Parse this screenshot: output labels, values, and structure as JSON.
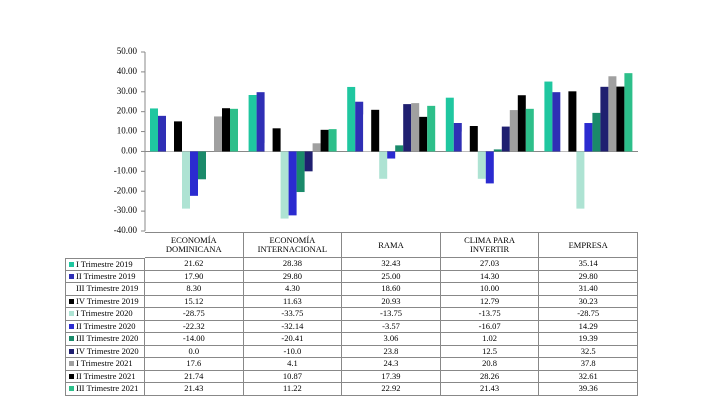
{
  "chart_data": {
    "type": "bar",
    "categories": [
      "ECONOMÍA DOMINICANA",
      "ECONOMÍA INTERNACIONAL",
      "RAMA",
      "CLIMA PARA INVERTIR",
      "EMPRESA"
    ],
    "ylim": [
      -40,
      50
    ],
    "yticks": [
      {
        "value": -40,
        "label": "-40.00"
      },
      {
        "value": -30,
        "label": "-30.00"
      },
      {
        "value": -20,
        "label": "-20.00"
      },
      {
        "value": -10,
        "label": "-10.00"
      },
      {
        "value": 0,
        "label": "0.00"
      },
      {
        "value": 10,
        "label": "10.00"
      },
      {
        "value": 20,
        "label": "20.00"
      },
      {
        "value": 30,
        "label": "30.00"
      },
      {
        "value": 40,
        "label": "40.00"
      },
      {
        "value": 50,
        "label": "50.00"
      }
    ],
    "grid": false,
    "series": [
      {
        "name": "I Trimestre 2019",
        "color": "#1fc7a0",
        "values": [
          21.62,
          28.38,
          32.43,
          27.03,
          35.14
        ],
        "value_labels": [
          "21.62",
          "28.38",
          "32.43",
          "27.03",
          "35.14"
        ]
      },
      {
        "name": "II Trimestre 2019",
        "color": "#2f2fb5",
        "values": [
          17.9,
          29.8,
          25,
          14.3,
          29.8
        ],
        "value_labels": [
          "17.90",
          "29.80",
          "25.00",
          "14.30",
          "29.80"
        ]
      },
      {
        "name": "III Trimestre 2019",
        "color": "#ffffff",
        "values": [
          8.3,
          4.3,
          18.6,
          10,
          31.4
        ],
        "value_labels": [
          "8.30",
          "4.30",
          "18.60",
          "10.00",
          "31.40"
        ]
      },
      {
        "name": "IV Trimestre 2019",
        "color": "#000000",
        "values": [
          15.12,
          11.63,
          20.93,
          12.79,
          30.23
        ],
        "value_labels": [
          "15.12",
          "11.63",
          "20.93",
          "12.79",
          "30.23"
        ]
      },
      {
        "name": "I Trimestre 2020",
        "color": "#aee3d3",
        "values": [
          -28.75,
          -33.75,
          -13.75,
          -13.75,
          -28.75
        ],
        "value_labels": [
          "-28.75",
          "-33.75",
          "-13.75",
          "-13.75",
          "-28.75"
        ]
      },
      {
        "name": "II Trimestre 2020",
        "color": "#2b2bd0",
        "values": [
          -22.32,
          -32.14,
          -3.57,
          -16.07,
          14.29
        ],
        "value_labels": [
          "-22.32",
          "-32.14",
          "-3.57",
          "-16.07",
          "14.29"
        ]
      },
      {
        "name": "III Trimestre 2020",
        "color": "#1a8a6a",
        "values": [
          -14,
          -20.41,
          3.06,
          1.02,
          19.39
        ],
        "value_labels": [
          "-14.00",
          "-20.41",
          "3.06",
          "1.02",
          "19.39"
        ]
      },
      {
        "name": "IV Trimestre 2020",
        "color": "#1f1f70",
        "values": [
          0,
          -10,
          23.8,
          12.5,
          32.5
        ],
        "value_labels": [
          "0.0",
          "-10.0",
          "23.8",
          "12.5",
          "32.5"
        ]
      },
      {
        "name": "I Trimestre 2021",
        "color": "#a0a0a0",
        "values": [
          17.6,
          4.1,
          24.3,
          20.8,
          37.8
        ],
        "value_labels": [
          "17.6",
          "4.1",
          "24.3",
          "20.8",
          "37.8"
        ]
      },
      {
        "name": "II Trimestre 2021",
        "color": "#000000",
        "values": [
          21.74,
          10.87,
          17.39,
          28.26,
          32.61
        ],
        "value_labels": [
          "21.74",
          "10.87",
          "17.39",
          "28.26",
          "32.61"
        ]
      },
      {
        "name": "III Trimestre 2021",
        "color": "#2dbf8a",
        "values": [
          21.43,
          11.22,
          22.92,
          21.43,
          39.36
        ],
        "value_labels": [
          "21.43",
          "11.22",
          "22.92",
          "21.43",
          "39.36"
        ]
      }
    ]
  }
}
